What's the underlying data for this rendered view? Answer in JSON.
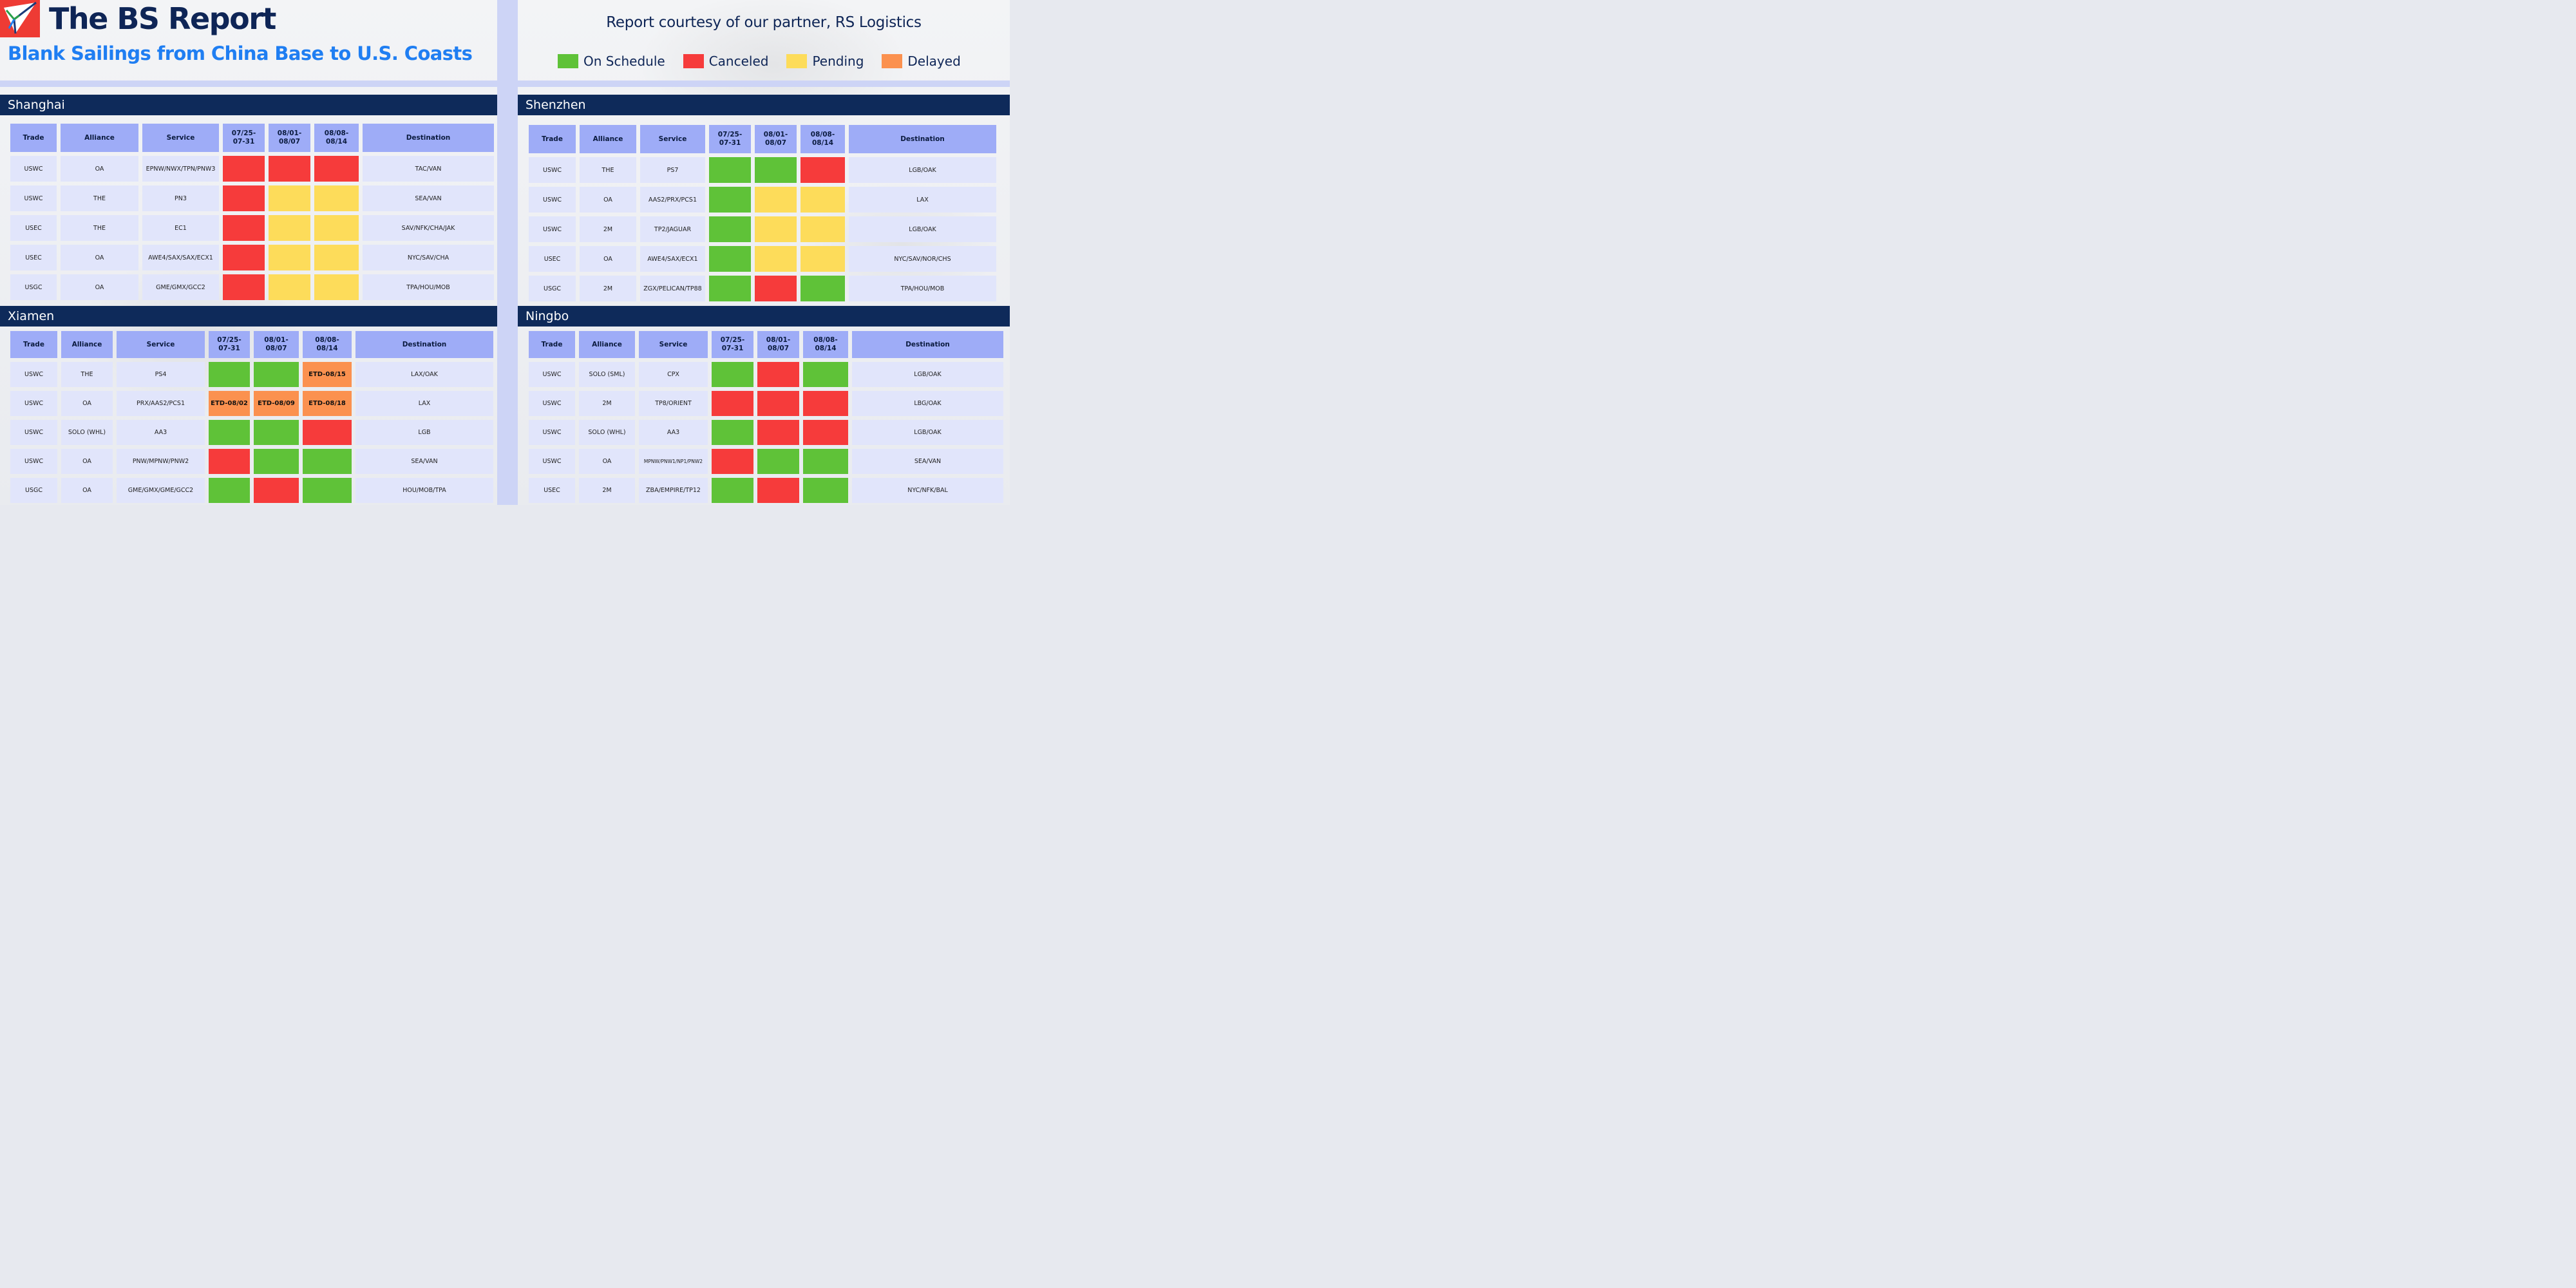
{
  "header": {
    "title": "The BS Report",
    "subtitle": "Blank Sailings from China Base to U.S. Coasts",
    "courtesy": "Report courtesy of our partner, RS Logistics",
    "logo_icon": "paper-plane-icon"
  },
  "colors": {
    "on_schedule": "#5fc238",
    "canceled": "#f63b3b",
    "pending": "#fddc5a",
    "delayed": "#fb914f",
    "panel_header": "#0e2a5a",
    "column_header": "#9eacf7",
    "cell": "#e1e5fb",
    "title": "#0e2556",
    "subtitle": "#1f7ef2",
    "logo": "#ee3b34"
  },
  "legend": [
    {
      "status": "on",
      "label": "On Schedule"
    },
    {
      "status": "can",
      "label": "Canceled"
    },
    {
      "status": "pen",
      "label": "Pending"
    },
    {
      "status": "del",
      "label": "Delayed"
    }
  ],
  "columns": [
    "Trade",
    "Alliance",
    "Service",
    "07/25-\n07-31",
    "08/01-\n08/07",
    "08/08-\n08/14",
    "Destination"
  ],
  "panels": [
    {
      "name": "Shanghai",
      "rows": [
        {
          "trade": "USWC",
          "alliance": "OA",
          "service": "EPNW/NWX/TPN/PNW3",
          "w1": {
            "s": "can",
            "t": ""
          },
          "w2": {
            "s": "can",
            "t": ""
          },
          "w3": {
            "s": "can",
            "t": ""
          },
          "destination": "TAC/VAN"
        },
        {
          "trade": "USWC",
          "alliance": "THE",
          "service": "PN3",
          "w1": {
            "s": "can",
            "t": ""
          },
          "w2": {
            "s": "pen",
            "t": ""
          },
          "w3": {
            "s": "pen",
            "t": ""
          },
          "destination": "SEA/VAN"
        },
        {
          "trade": "USEC",
          "alliance": "THE",
          "service": "EC1",
          "w1": {
            "s": "can",
            "t": ""
          },
          "w2": {
            "s": "pen",
            "t": ""
          },
          "w3": {
            "s": "pen",
            "t": ""
          },
          "destination": "SAV/NFK/CHA/JAK"
        },
        {
          "trade": "USEC",
          "alliance": "OA",
          "service": "AWE4/SAX/SAX/ECX1",
          "w1": {
            "s": "can",
            "t": ""
          },
          "w2": {
            "s": "pen",
            "t": ""
          },
          "w3": {
            "s": "pen",
            "t": ""
          },
          "destination": "NYC/SAV/CHA"
        },
        {
          "trade": "USGC",
          "alliance": "OA",
          "service": "GME/GMX/GCC2",
          "w1": {
            "s": "can",
            "t": ""
          },
          "w2": {
            "s": "pen",
            "t": ""
          },
          "w3": {
            "s": "pen",
            "t": ""
          },
          "destination": "TPA/HOU/MOB"
        }
      ]
    },
    {
      "name": "Shenzhen",
      "rows": [
        {
          "trade": "USWC",
          "alliance": "THE",
          "service": "PS7",
          "w1": {
            "s": "on",
            "t": ""
          },
          "w2": {
            "s": "on",
            "t": ""
          },
          "w3": {
            "s": "can",
            "t": ""
          },
          "destination": "LGB/OAK"
        },
        {
          "trade": "USWC",
          "alliance": "OA",
          "service": "AAS2/PRX/PCS1",
          "w1": {
            "s": "on",
            "t": ""
          },
          "w2": {
            "s": "pen",
            "t": ""
          },
          "w3": {
            "s": "pen",
            "t": ""
          },
          "destination": "LAX"
        },
        {
          "trade": "USWC",
          "alliance": "2M",
          "service": "TP2/JAGUAR",
          "w1": {
            "s": "on",
            "t": ""
          },
          "w2": {
            "s": "pen",
            "t": ""
          },
          "w3": {
            "s": "pen",
            "t": ""
          },
          "destination": "LGB/OAK"
        },
        {
          "trade": "USEC",
          "alliance": "OA",
          "service": "AWE4/SAX/ECX1",
          "w1": {
            "s": "on",
            "t": ""
          },
          "w2": {
            "s": "pen",
            "t": ""
          },
          "w3": {
            "s": "pen",
            "t": ""
          },
          "destination": "NYC/SAV/NOR/CHS"
        },
        {
          "trade": "USGC",
          "alliance": "2M",
          "service": "ZGX/PELICAN/TP88",
          "w1": {
            "s": "on",
            "t": ""
          },
          "w2": {
            "s": "can",
            "t": ""
          },
          "w3": {
            "s": "on",
            "t": ""
          },
          "destination": "TPA/HOU/MOB"
        }
      ]
    },
    {
      "name": "Xiamen",
      "rows": [
        {
          "trade": "USWC",
          "alliance": "THE",
          "service": "PS4",
          "w1": {
            "s": "on",
            "t": ""
          },
          "w2": {
            "s": "on",
            "t": ""
          },
          "w3": {
            "s": "del",
            "t": "ETD-08/15"
          },
          "destination": "LAX/OAK"
        },
        {
          "trade": "USWC",
          "alliance": "OA",
          "service": "PRX/AAS2/PCS1",
          "w1": {
            "s": "del",
            "t": "ETD-08/02"
          },
          "w2": {
            "s": "del",
            "t": "ETD-08/09"
          },
          "w3": {
            "s": "del",
            "t": "ETD-08/18"
          },
          "destination": "LAX"
        },
        {
          "trade": "USWC",
          "alliance": "SOLO (WHL)",
          "service": "AA3",
          "w1": {
            "s": "on",
            "t": ""
          },
          "w2": {
            "s": "on",
            "t": ""
          },
          "w3": {
            "s": "can",
            "t": ""
          },
          "destination": "LGB"
        },
        {
          "trade": "USWC",
          "alliance": "OA",
          "service": "PNW/MPNW/PNW2",
          "w1": {
            "s": "can",
            "t": ""
          },
          "w2": {
            "s": "on",
            "t": ""
          },
          "w3": {
            "s": "on",
            "t": ""
          },
          "destination": "SEA/VAN"
        },
        {
          "trade": "USGC",
          "alliance": "OA",
          "service": "GME/GMX/GME/GCC2",
          "w1": {
            "s": "on",
            "t": ""
          },
          "w2": {
            "s": "can",
            "t": ""
          },
          "w3": {
            "s": "on",
            "t": ""
          },
          "destination": "HOU/MOB/TPA"
        }
      ]
    },
    {
      "name": "Ningbo",
      "rows": [
        {
          "trade": "USWC",
          "alliance": "SOLO (SML)",
          "service": "CPX",
          "w1": {
            "s": "on",
            "t": ""
          },
          "w2": {
            "s": "can",
            "t": ""
          },
          "w3": {
            "s": "on",
            "t": ""
          },
          "destination": "LGB/OAK"
        },
        {
          "trade": "USWC",
          "alliance": "2M",
          "service": "TP8/ORIENT",
          "w1": {
            "s": "can",
            "t": ""
          },
          "w2": {
            "s": "can",
            "t": ""
          },
          "w3": {
            "s": "can",
            "t": ""
          },
          "destination": "LBG/OAK"
        },
        {
          "trade": "USWC",
          "alliance": "SOLO (WHL)",
          "service": "AA3",
          "w1": {
            "s": "on",
            "t": ""
          },
          "w2": {
            "s": "can",
            "t": ""
          },
          "w3": {
            "s": "can",
            "t": ""
          },
          "destination": "LGB/OAK"
        },
        {
          "trade": "USWC",
          "alliance": "OA",
          "service": "MPNW/PNW1/NP1/PNW2",
          "w1": {
            "s": "can",
            "t": ""
          },
          "w2": {
            "s": "on",
            "t": ""
          },
          "w3": {
            "s": "on",
            "t": ""
          },
          "destination": "SEA/VAN"
        },
        {
          "trade": "USEC",
          "alliance": "2M",
          "service": "ZBA/EMPIRE/TP12",
          "w1": {
            "s": "on",
            "t": ""
          },
          "w2": {
            "s": "can",
            "t": ""
          },
          "w3": {
            "s": "on",
            "t": ""
          },
          "destination": "NYC/NFK/BAL"
        }
      ]
    }
  ]
}
